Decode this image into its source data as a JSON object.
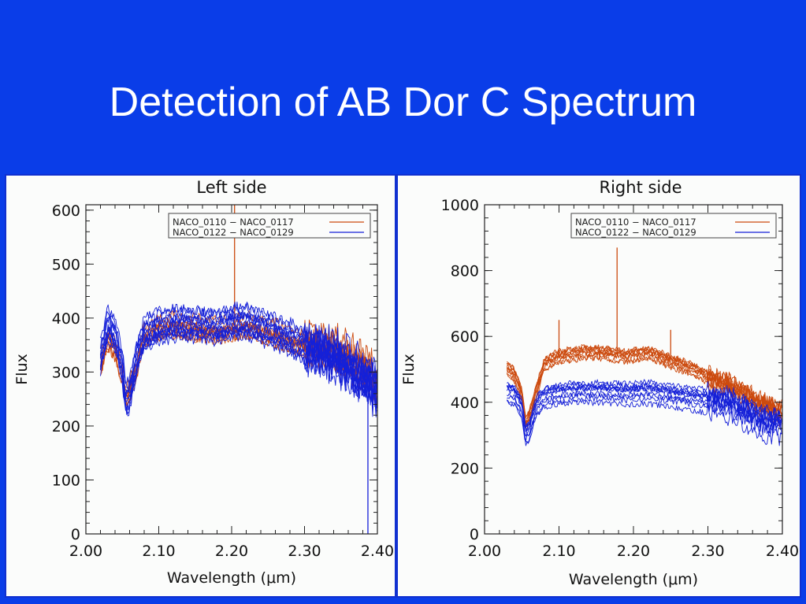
{
  "slide": {
    "title": "Detection of AB Dor C Spectrum",
    "background_color": "#0a3de8"
  },
  "colors": {
    "series_orange": "#cc4a0e",
    "series_blue": "#1520d8",
    "panel_background": "#fbfcfb"
  },
  "chart_data": [
    {
      "type": "line",
      "title": "Left side",
      "xlabel": "Wavelength (μm)",
      "ylabel": "Flux",
      "xlim": [
        2.0,
        2.4
      ],
      "ylim": [
        0,
        610
      ],
      "x_ticks": [
        2.0,
        2.1,
        2.2,
        2.3,
        2.4
      ],
      "x_tick_labels": [
        "2.00",
        "2.10",
        "2.20",
        "2.30",
        "2.40"
      ],
      "y_ticks": [
        0,
        100,
        200,
        300,
        400,
        500,
        600
      ],
      "y_tick_labels": [
        "0",
        "100",
        "200",
        "300",
        "400",
        "500",
        "600"
      ],
      "grid": false,
      "legend_position": "top-right",
      "legend": [
        {
          "label": "NACO_0110 − NACO_0117",
          "color": "#cc4a0e"
        },
        {
          "label": "NACO_0122 − NACO_0129",
          "color": "#1520d8"
        }
      ],
      "series": [
        {
          "color": "#cc4a0e",
          "line_count": 8,
          "x": [
            2.02,
            2.03,
            2.04,
            2.05,
            2.055,
            2.06,
            2.07,
            2.08,
            2.1,
            2.12,
            2.15,
            2.18,
            2.2,
            2.22,
            2.25,
            2.28,
            2.3,
            2.32,
            2.34,
            2.36,
            2.38,
            2.4
          ],
          "y": [
            300,
            350,
            330,
            280,
            240,
            255,
            300,
            355,
            370,
            375,
            370,
            365,
            370,
            375,
            365,
            350,
            345,
            340,
            335,
            320,
            300,
            275
          ],
          "spikes": [
            {
              "x": 2.204,
              "y": 610
            }
          ]
        },
        {
          "color": "#1520d8",
          "line_count": 12,
          "x": [
            2.02,
            2.03,
            2.04,
            2.05,
            2.055,
            2.06,
            2.07,
            2.08,
            2.1,
            2.12,
            2.15,
            2.18,
            2.2,
            2.22,
            2.25,
            2.28,
            2.3,
            2.32,
            2.34,
            2.36,
            2.38,
            2.4
          ],
          "y": [
            330,
            395,
            375,
            315,
            250,
            265,
            330,
            375,
            390,
            395,
            395,
            390,
            400,
            400,
            385,
            370,
            355,
            345,
            335,
            320,
            300,
            270
          ],
          "spikes": [
            {
              "x": 2.387,
              "y": 0
            }
          ]
        }
      ]
    },
    {
      "type": "line",
      "title": "Right side",
      "xlabel": "Wavelength (μm)",
      "ylabel": "Flux",
      "xlim": [
        2.0,
        2.4
      ],
      "ylim": [
        0,
        1000
      ],
      "x_ticks": [
        2.0,
        2.1,
        2.2,
        2.3,
        2.4
      ],
      "x_tick_labels": [
        "2.00",
        "2.10",
        "2.20",
        "2.30",
        "2.40"
      ],
      "y_ticks": [
        0,
        200,
        400,
        600,
        800,
        1000
      ],
      "y_tick_labels": [
        "0",
        "200",
        "400",
        "600",
        "800",
        "1000"
      ],
      "grid": false,
      "legend_position": "top-right",
      "legend": [
        {
          "label": "NACO_0110 − NACO_0117",
          "color": "#cc4a0e"
        },
        {
          "label": "NACO_0122 − NACO_0129",
          "color": "#1520d8"
        }
      ],
      "series": [
        {
          "color": "#cc4a0e",
          "line_count": 10,
          "x": [
            2.03,
            2.04,
            2.05,
            2.055,
            2.06,
            2.07,
            2.08,
            2.1,
            2.13,
            2.16,
            2.19,
            2.22,
            2.25,
            2.28,
            2.3,
            2.33,
            2.35,
            2.37,
            2.4
          ],
          "y": [
            510,
            490,
            430,
            340,
            360,
            440,
            520,
            545,
            555,
            555,
            545,
            555,
            530,
            505,
            480,
            455,
            430,
            400,
            370
          ],
          "spikes": [
            {
              "x": 2.1,
              "y": 650
            },
            {
              "x": 2.178,
              "y": 870
            },
            {
              "x": 2.25,
              "y": 620
            }
          ]
        },
        {
          "color": "#1520d8",
          "line_count": 10,
          "x": [
            2.03,
            2.04,
            2.05,
            2.055,
            2.06,
            2.07,
            2.08,
            2.1,
            2.13,
            2.16,
            2.19,
            2.22,
            2.25,
            2.28,
            2.3,
            2.33,
            2.35,
            2.37,
            2.4
          ],
          "y": [
            430,
            420,
            380,
            300,
            310,
            390,
            415,
            425,
            430,
            430,
            425,
            430,
            420,
            410,
            405,
            390,
            370,
            340,
            330
          ],
          "spikes": []
        }
      ]
    }
  ]
}
